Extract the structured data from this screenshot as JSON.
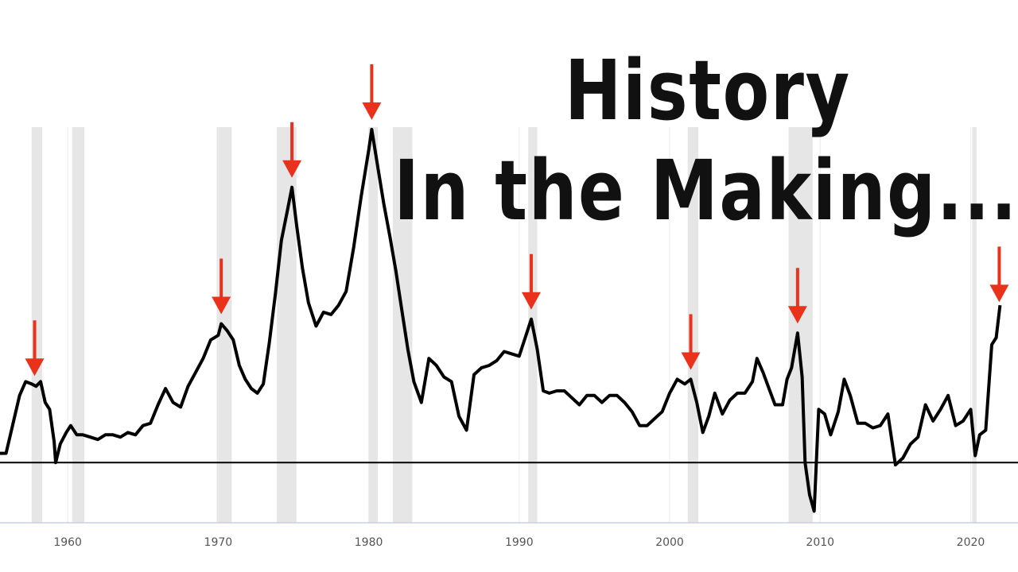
{
  "headline": {
    "line1": "History",
    "line2": "In the Making..."
  },
  "colors": {
    "line": "#000000",
    "recession_band": "#e6e6e6",
    "arrow": "#e8321c",
    "baseline": "#000000",
    "axis": "#c9cde8",
    "tick_text": "#555555"
  },
  "chart_data": {
    "type": "line",
    "xlabel": "",
    "ylabel": "",
    "xlim": [
      1955.5,
      2022.3
    ],
    "ylim": [
      -2.6,
      14.5
    ],
    "x_ticks": [
      1960,
      1970,
      1980,
      1990,
      2000,
      2010,
      2020
    ],
    "x_tick_labels": [
      "1960",
      "1970",
      "1980",
      "1990",
      "2000",
      "2010",
      "2020"
    ],
    "grid": "vertical lines at decade ticks, horizontal grid hidden",
    "baseline": 0,
    "recession_bands": [
      [
        1957.6,
        1958.3
      ],
      [
        1960.3,
        1961.1
      ],
      [
        1969.9,
        1970.9
      ],
      [
        1973.9,
        1975.2
      ],
      [
        1980.0,
        1980.6
      ],
      [
        1981.6,
        1982.9
      ],
      [
        1990.6,
        1991.2
      ],
      [
        2001.2,
        2001.9
      ],
      [
        2007.9,
        2009.5
      ],
      [
        2020.1,
        2020.4
      ]
    ],
    "arrows_at_peaks": [
      1957.8,
      1970.2,
      1974.9,
      1980.2,
      1990.8,
      2001.4,
      2008.5,
      2021.9
    ],
    "series": [
      {
        "values": [
          [
            1955.5,
            0.4
          ],
          [
            1955.9,
            0.4
          ],
          [
            1956.3,
            1.5
          ],
          [
            1956.8,
            2.9
          ],
          [
            1957.2,
            3.5
          ],
          [
            1957.6,
            3.4
          ],
          [
            1957.9,
            3.3
          ],
          [
            1958.2,
            3.5
          ],
          [
            1958.5,
            2.6
          ],
          [
            1958.8,
            2.3
          ],
          [
            1959.1,
            0.9
          ],
          [
            1959.2,
            0.0
          ],
          [
            1959.5,
            0.8
          ],
          [
            1959.9,
            1.3
          ],
          [
            1960.2,
            1.6
          ],
          [
            1960.6,
            1.2
          ],
          [
            1961.0,
            1.2
          ],
          [
            1961.5,
            1.1
          ],
          [
            1962.0,
            1.0
          ],
          [
            1962.5,
            1.2
          ],
          [
            1963.0,
            1.2
          ],
          [
            1963.5,
            1.1
          ],
          [
            1964.0,
            1.3
          ],
          [
            1964.5,
            1.2
          ],
          [
            1965.0,
            1.6
          ],
          [
            1965.5,
            1.7
          ],
          [
            1966.0,
            2.5
          ],
          [
            1966.5,
            3.2
          ],
          [
            1967.0,
            2.6
          ],
          [
            1967.5,
            2.4
          ],
          [
            1968.0,
            3.3
          ],
          [
            1968.5,
            3.9
          ],
          [
            1969.0,
            4.5
          ],
          [
            1969.5,
            5.3
          ],
          [
            1970.0,
            5.5
          ],
          [
            1970.2,
            6.0
          ],
          [
            1970.6,
            5.7
          ],
          [
            1971.0,
            5.3
          ],
          [
            1971.4,
            4.2
          ],
          [
            1971.8,
            3.6
          ],
          [
            1972.2,
            3.2
          ],
          [
            1972.6,
            3.0
          ],
          [
            1973.0,
            3.4
          ],
          [
            1973.4,
            5.2
          ],
          [
            1973.8,
            7.3
          ],
          [
            1974.2,
            9.6
          ],
          [
            1974.6,
            10.9
          ],
          [
            1974.9,
            11.9
          ],
          [
            1975.2,
            10.3
          ],
          [
            1975.6,
            8.4
          ],
          [
            1976.0,
            6.9
          ],
          [
            1976.5,
            5.9
          ],
          [
            1977.0,
            6.5
          ],
          [
            1977.5,
            6.4
          ],
          [
            1978.0,
            6.8
          ],
          [
            1978.5,
            7.4
          ],
          [
            1979.0,
            9.3
          ],
          [
            1979.5,
            11.5
          ],
          [
            1980.0,
            13.5
          ],
          [
            1980.2,
            14.4
          ],
          [
            1980.6,
            12.8
          ],
          [
            1981.0,
            11.2
          ],
          [
            1981.4,
            9.8
          ],
          [
            1981.8,
            8.3
          ],
          [
            1982.2,
            6.6
          ],
          [
            1982.6,
            4.9
          ],
          [
            1983.0,
            3.5
          ],
          [
            1983.5,
            2.6
          ],
          [
            1984.0,
            4.5
          ],
          [
            1984.5,
            4.2
          ],
          [
            1985.0,
            3.7
          ],
          [
            1985.5,
            3.5
          ],
          [
            1986.0,
            2.0
          ],
          [
            1986.5,
            1.4
          ],
          [
            1987.0,
            3.8
          ],
          [
            1987.5,
            4.1
          ],
          [
            1988.0,
            4.2
          ],
          [
            1988.5,
            4.4
          ],
          [
            1989.0,
            4.8
          ],
          [
            1989.5,
            4.7
          ],
          [
            1990.0,
            4.6
          ],
          [
            1990.5,
            5.6
          ],
          [
            1990.8,
            6.2
          ],
          [
            1991.2,
            4.9
          ],
          [
            1991.6,
            3.1
          ],
          [
            1992.0,
            3.0
          ],
          [
            1992.5,
            3.1
          ],
          [
            1993.0,
            3.1
          ],
          [
            1993.5,
            2.8
          ],
          [
            1994.0,
            2.5
          ],
          [
            1994.5,
            2.9
          ],
          [
            1995.0,
            2.9
          ],
          [
            1995.5,
            2.6
          ],
          [
            1996.0,
            2.9
          ],
          [
            1996.5,
            2.9
          ],
          [
            1997.0,
            2.6
          ],
          [
            1997.5,
            2.2
          ],
          [
            1998.0,
            1.6
          ],
          [
            1998.5,
            1.6
          ],
          [
            1999.0,
            1.9
          ],
          [
            1999.5,
            2.2
          ],
          [
            2000.0,
            3.0
          ],
          [
            2000.5,
            3.6
          ],
          [
            2001.0,
            3.4
          ],
          [
            2001.4,
            3.6
          ],
          [
            2001.8,
            2.6
          ],
          [
            2002.2,
            1.3
          ],
          [
            2002.6,
            2.0
          ],
          [
            2003.0,
            3.0
          ],
          [
            2003.5,
            2.1
          ],
          [
            2004.0,
            2.7
          ],
          [
            2004.5,
            3.0
          ],
          [
            2005.0,
            3.0
          ],
          [
            2005.5,
            3.5
          ],
          [
            2005.8,
            4.5
          ],
          [
            2006.2,
            3.9
          ],
          [
            2006.6,
            3.2
          ],
          [
            2007.0,
            2.5
          ],
          [
            2007.5,
            2.5
          ],
          [
            2007.8,
            3.6
          ],
          [
            2008.1,
            4.1
          ],
          [
            2008.5,
            5.6
          ],
          [
            2008.8,
            3.7
          ],
          [
            2009.0,
            0.0
          ],
          [
            2009.3,
            -1.4
          ],
          [
            2009.6,
            -2.1
          ],
          [
            2009.9,
            2.3
          ],
          [
            2010.3,
            2.1
          ],
          [
            2010.7,
            1.2
          ],
          [
            2011.2,
            2.2
          ],
          [
            2011.6,
            3.6
          ],
          [
            2012.0,
            2.9
          ],
          [
            2012.5,
            1.7
          ],
          [
            2013.0,
            1.7
          ],
          [
            2013.5,
            1.5
          ],
          [
            2014.0,
            1.6
          ],
          [
            2014.5,
            2.1
          ],
          [
            2015.0,
            -0.1
          ],
          [
            2015.5,
            0.2
          ],
          [
            2016.0,
            0.8
          ],
          [
            2016.5,
            1.1
          ],
          [
            2017.0,
            2.5
          ],
          [
            2017.5,
            1.8
          ],
          [
            2018.0,
            2.3
          ],
          [
            2018.5,
            2.9
          ],
          [
            2019.0,
            1.6
          ],
          [
            2019.5,
            1.8
          ],
          [
            2020.0,
            2.3
          ],
          [
            2020.3,
            0.3
          ],
          [
            2020.6,
            1.2
          ],
          [
            2021.0,
            1.4
          ],
          [
            2021.4,
            5.1
          ],
          [
            2021.7,
            5.4
          ],
          [
            2021.95,
            6.8
          ]
        ]
      }
    ]
  }
}
